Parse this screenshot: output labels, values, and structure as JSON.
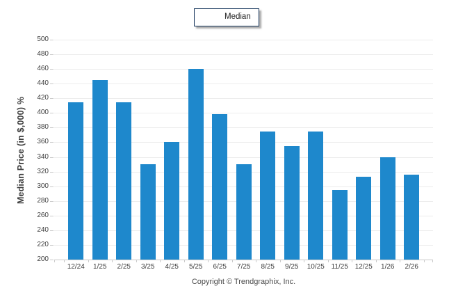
{
  "chart_data": {
    "type": "bar",
    "categories": [
      "12/24",
      "1/25",
      "2/25",
      "3/25",
      "4/25",
      "5/25",
      "6/25",
      "7/25",
      "8/25",
      "9/25",
      "10/25",
      "11/25",
      "12/25",
      "1/26",
      "2/26"
    ],
    "values": [
      415,
      445,
      415,
      330,
      360,
      460,
      398,
      330,
      375,
      355,
      375,
      295,
      313,
      340,
      316
    ],
    "title": "",
    "xlabel": "",
    "ylabel": "Median Price (in $,000) %",
    "ylim": [
      200,
      500
    ],
    "ytick_step": 20,
    "grid": true,
    "legend_position": "top-center",
    "series_name": "Median"
  },
  "legend": {
    "label": "Median"
  },
  "yaxis": {
    "title": "Median Price (in $,000) %"
  },
  "footer": {
    "copyright": "Copyright © Trendgraphix, Inc."
  },
  "colors": {
    "bar": "#1e88cc",
    "gridline": "#ececec",
    "axis_line": "#c9c9c9",
    "tick_label": "#3f3f3f",
    "legend_border": "#16355c"
  }
}
